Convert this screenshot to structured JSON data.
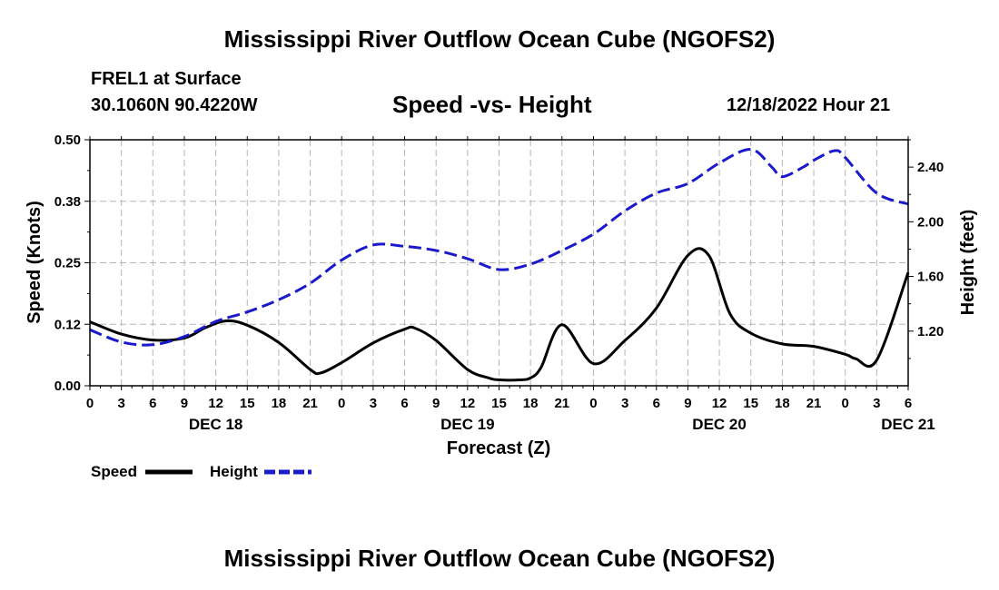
{
  "header": {
    "title": "Mississippi River Outflow Ocean Cube (NGOFS2)",
    "station": "FREL1 at Surface",
    "coords": "30.1060N  90.4220W",
    "subtitle": "Speed -vs- Height",
    "datetime": "12/18/2022 Hour 21"
  },
  "footer": {
    "title": "Mississippi River Outflow Ocean Cube (NGOFS2)"
  },
  "legend": [
    {
      "name": "Speed",
      "color": "#000000"
    },
    {
      "name": "Height",
      "color": "#1a1acc"
    }
  ],
  "chart_data": {
    "type": "line",
    "title": "Speed -vs- Height",
    "xlabel": "Forecast (Z)",
    "ylabel": "Speed (Knots)",
    "y2label": "Height (feet)",
    "xlim": [
      0,
      78
    ],
    "ylim": [
      0,
      0.5
    ],
    "y2lim": [
      0.8,
      2.6
    ],
    "x_tick_labels": [
      "0",
      "3",
      "6",
      "9",
      "12",
      "15",
      "18",
      "21",
      "0",
      "3",
      "6",
      "9",
      "12",
      "15",
      "18",
      "21",
      "0",
      "3",
      "6",
      "9",
      "12",
      "15",
      "18",
      "21",
      "0",
      "3",
      "6"
    ],
    "y_ticks": [
      {
        "value": 0.0,
        "label": "0.00"
      },
      {
        "value": 0.125,
        "label": "0.12"
      },
      {
        "value": 0.25,
        "label": "0.25"
      },
      {
        "value": 0.375,
        "label": "0.38"
      },
      {
        "value": 0.5,
        "label": "0.50"
      }
    ],
    "y2_ticks": [
      {
        "value": 1.2,
        "label": "1.20"
      },
      {
        "value": 1.6,
        "label": "1.60"
      },
      {
        "value": 2.0,
        "label": "2.00"
      },
      {
        "value": 2.4,
        "label": "2.40"
      }
    ],
    "day_labels": [
      {
        "x": 12,
        "label": "DEC 18"
      },
      {
        "x": 36,
        "label": "DEC 19"
      },
      {
        "x": 60,
        "label": "DEC 20"
      },
      {
        "x": 78,
        "label": "DEC 21"
      }
    ],
    "series": [
      {
        "name": "Speed",
        "axis": "left",
        "color": "#000000",
        "dash": false,
        "x": [
          0,
          3,
          6,
          9,
          11,
          13,
          15,
          18,
          21,
          22,
          24,
          27,
          30,
          31,
          33,
          36,
          38,
          39,
          41,
          42,
          43,
          45,
          48,
          51,
          54,
          57,
          59,
          61,
          63,
          66,
          69,
          72,
          73,
          75,
          78
        ],
        "y": [
          0.13,
          0.105,
          0.093,
          0.097,
          0.118,
          0.132,
          0.123,
          0.088,
          0.033,
          0.026,
          0.047,
          0.087,
          0.115,
          0.117,
          0.092,
          0.033,
          0.016,
          0.012,
          0.012,
          0.016,
          0.037,
          0.124,
          0.045,
          0.092,
          0.158,
          0.265,
          0.265,
          0.147,
          0.107,
          0.085,
          0.08,
          0.064,
          0.055,
          0.052,
          0.23
        ]
      },
      {
        "name": "Height",
        "axis": "right",
        "color": "#1a1acc",
        "dash": true,
        "x": [
          0,
          3,
          6,
          9,
          12,
          15,
          18,
          21,
          24,
          27,
          30,
          33,
          36,
          39,
          42,
          45,
          48,
          51,
          54,
          57,
          60,
          63,
          65,
          66,
          68,
          69,
          71,
          72,
          75,
          78
        ],
        "y": [
          1.21,
          1.12,
          1.1,
          1.16,
          1.27,
          1.34,
          1.43,
          1.55,
          1.72,
          1.83,
          1.82,
          1.79,
          1.73,
          1.65,
          1.69,
          1.79,
          1.91,
          2.08,
          2.21,
          2.28,
          2.43,
          2.53,
          2.4,
          2.33,
          2.4,
          2.45,
          2.52,
          2.47,
          2.21,
          2.13
        ]
      }
    ]
  }
}
